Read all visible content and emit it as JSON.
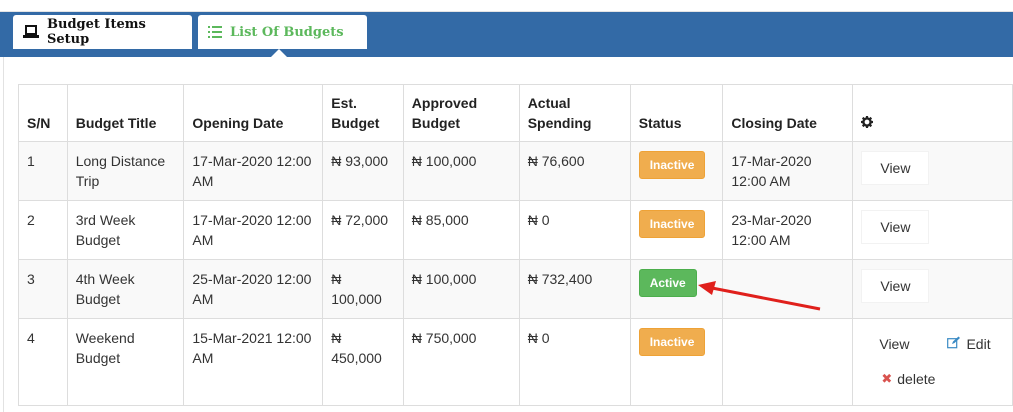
{
  "tabs": [
    {
      "label": "Budget Items Setup",
      "icon": "laptop-icon"
    },
    {
      "label": "List Of Budgets",
      "icon": "list-icon",
      "active": true
    }
  ],
  "table": {
    "headers": [
      "S/N",
      "Budget Title",
      "Opening Date",
      "Est. Budget",
      "Approved Budget",
      "Actual Spending",
      "Status",
      "Closing Date",
      "gear-icon"
    ],
    "rows": [
      {
        "sn": "1",
        "title": "Long Distance Trip",
        "opening": "17-Mar-2020 12:00 AM",
        "est": "₦ 93,000",
        "approved": "₦ 100,000",
        "actual": "₦ 76,600",
        "status": "Inactive",
        "closing": "17-Mar-2020 12:00 AM",
        "view": "View"
      },
      {
        "sn": "2",
        "title": "3rd Week Budget",
        "opening": "17-Mar-2020 12:00 AM",
        "est": "₦ 72,000",
        "approved": "₦ 85,000",
        "actual": "₦ 0",
        "status": "Inactive",
        "closing": "23-Mar-2020 12:00 AM",
        "view": "View"
      },
      {
        "sn": "3",
        "title": "4th Week Budget",
        "opening": "25-Mar-2020 12:00 AM",
        "est": "₦ 100,000",
        "approved": "₦ 100,000",
        "actual": "₦ 732,400",
        "status": "Active",
        "closing": "",
        "view": "View"
      },
      {
        "sn": "4",
        "title": "Weekend Budget",
        "opening": "15-Mar-2021 12:00 AM",
        "est": "₦ 450,000",
        "approved": "₦ 750,000",
        "actual": "₦ 0",
        "status": "Inactive",
        "closing": "",
        "view": "View",
        "edit": "Edit",
        "delete": "delete"
      }
    ]
  },
  "colors": {
    "tabbar": "#336aa6",
    "inactive": "#f0ad4e",
    "active": "#5cb85c",
    "arrow": "#e0201c",
    "list_tab_text": "#5cb85c"
  }
}
